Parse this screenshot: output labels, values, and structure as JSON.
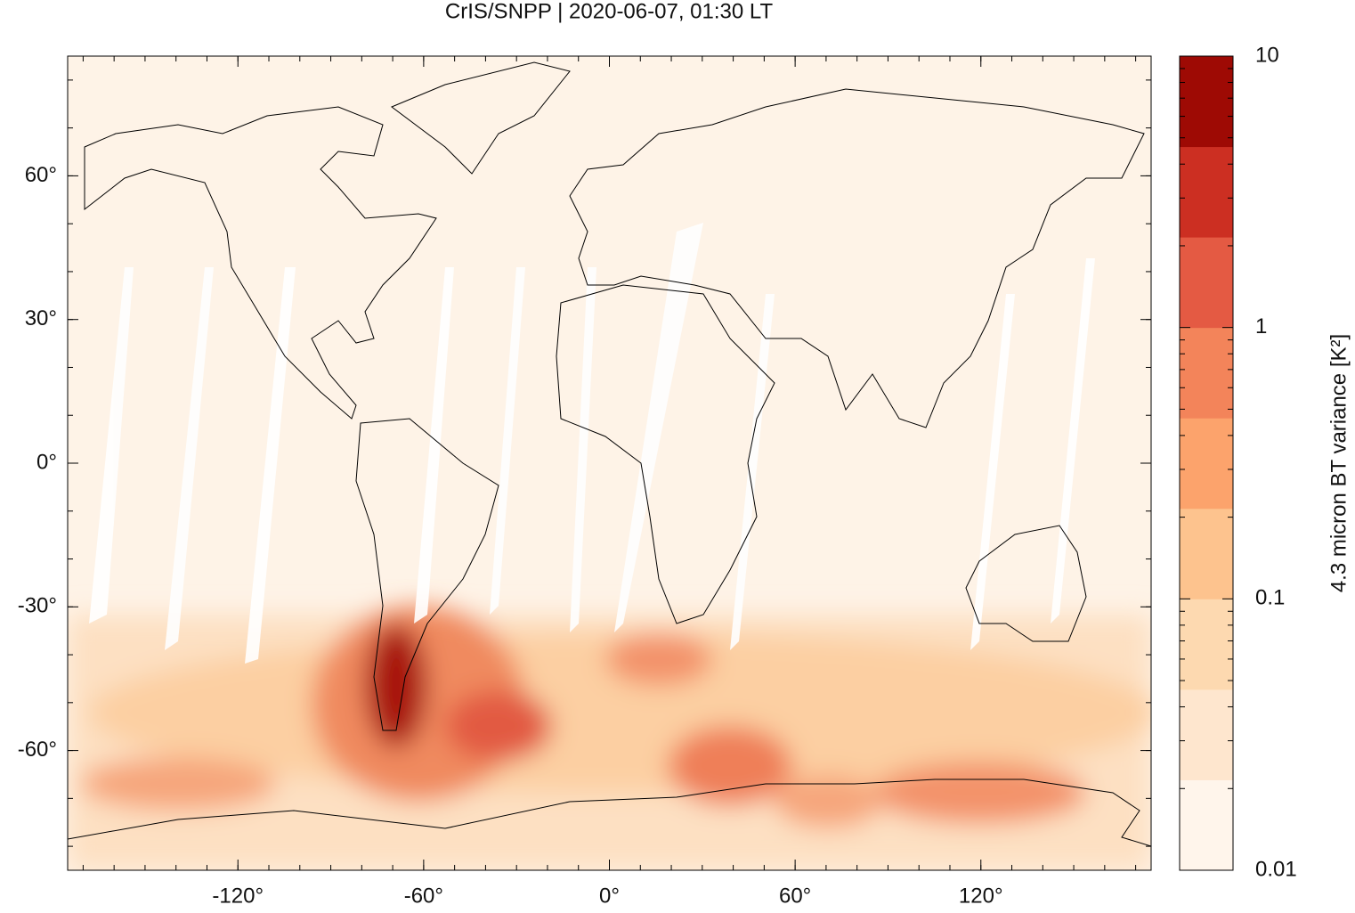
{
  "chart_data": {
    "type": "map",
    "title": "CrIS/SNPP | 2020-06-07, 01:30 LT",
    "xlim": [
      -175,
      175
    ],
    "ylim": [
      -85,
      85
    ],
    "xticks": [
      {
        "value": -120,
        "label": "-120°"
      },
      {
        "value": -60,
        "label": "-60°"
      },
      {
        "value": 0,
        "label": "0°"
      },
      {
        "value": 60,
        "label": "60°"
      },
      {
        "value": 120,
        "label": "120°"
      }
    ],
    "yticks": [
      {
        "value": 60,
        "label": "60°"
      },
      {
        "value": 30,
        "label": "30°"
      },
      {
        "value": 0,
        "label": "0°"
      },
      {
        "value": -30,
        "label": "-30°"
      },
      {
        "value": -60,
        "label": "-60°"
      }
    ],
    "colorbar": {
      "label": "4.3 micron BT variance [K²]",
      "log": true,
      "zlim": [
        0.01,
        10
      ],
      "zticks": [
        0.01,
        0.1,
        1,
        10
      ],
      "colors": [
        "#fff5eb",
        "#fee6ce",
        "#fdd9b0",
        "#fdc38e",
        "#fca36c",
        "#f3845a",
        "#e45a43",
        "#cc2f22",
        "#9e0a04"
      ]
    }
  }
}
